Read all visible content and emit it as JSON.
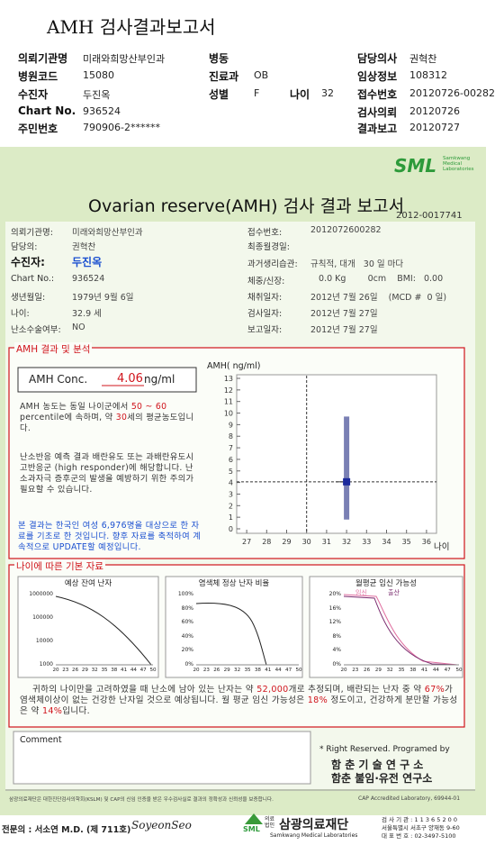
{
  "header": {
    "title": "AMH 검사결과보고서",
    "fields": [
      {
        "label": "의뢰기관명",
        "value": "미래와희망산부인과"
      },
      {
        "label": "병동"
      },
      {
        "label": "담당의사",
        "value": "권혁찬"
      },
      {
        "label": "병원코드",
        "value": "15080"
      },
      {
        "label": "진료과",
        "value": "OB"
      },
      {
        "label": "임상정보",
        "value": "108312"
      },
      {
        "label": "수진자",
        "value": "두진옥"
      },
      {
        "label": "성별",
        "value": "F"
      },
      {
        "label": "나이",
        "value": "32"
      },
      {
        "label": "접수번호",
        "value": "20120726-00282"
      },
      {
        "label": "Chart No.",
        "value": "936524"
      },
      {
        "label": "검사의뢰",
        "value": "20120726"
      },
      {
        "label": "주민번호",
        "value": "790906-2******"
      },
      {
        "label": "결과보고",
        "value": "20120727"
      }
    ]
  },
  "report": {
    "logo": "SML",
    "logo_sub": [
      "Samkwang",
      "Medical",
      "Laboratories"
    ],
    "title": "Ovarian reserve(AMH) 검사 결과 보고서",
    "number": "2012-0017741",
    "info": [
      {
        "label": "의뢰기관명:",
        "value": "미래와희망산부인과"
      },
      {
        "label": "접수번호:",
        "value": "2012072600282"
      },
      {
        "label": "담당의:",
        "value": "권혁찬"
      },
      {
        "label": "최종월경일:"
      },
      {
        "label": "수진자:",
        "value": "두진옥"
      },
      {
        "label": "과거생리습관:",
        "value": "규칙적, 대개   30 일 마다"
      },
      {
        "label": "Chart No.:",
        "value": "936524"
      },
      {
        "label": "체중/신장:",
        "value": "   0.0 Kg        0cm    BMI:   0.00"
      },
      {
        "label": "생년월일:",
        "value": "1979년 9월 6일"
      },
      {
        "label": "채취일자:",
        "value": "2012년 7월 26일    (MCD #  0 일)"
      },
      {
        "label": "나이:",
        "value": "32.9 세"
      },
      {
        "label": "검사일자:",
        "value": "2012년 7월 27일"
      },
      {
        "label": "난소수술여부:",
        "value": "NO"
      },
      {
        "label": "보고일자:",
        "value": "2012년 7월 27일"
      }
    ]
  },
  "analysis": {
    "heading": "AMH 결과 및 분석",
    "conc_label": "AMH Conc.",
    "conc_value": 4.06,
    "conc_unit": "ng/ml",
    "para1": [
      "AMH 농도는 동일 나이군에서",
      "50 ~ 60",
      "percentile에 속하며, 약",
      "세의 평균농도입니다."
    ],
    "equiv_age": 30,
    "para2": "난소반응 예측 결과 배란유도 또는 과배란유도시 고반응군 (high responder)에 해당합니다. 난소과자극 증후군의 발생을 예방하기 위한 주의가 필요할 수 있습니다.",
    "para3": "본 결과는 한국인 여성 6,976명을 대상으로 한 자료를 기초로 한 것입니다. 향후 자료를 축적하여 계속적으로 UPDATE할 예정입니다.",
    "chart": {
      "type": "range-bar",
      "y_label": "AMH( ng/ml)",
      "x_label": "나이",
      "ylim": [
        0,
        13
      ],
      "yticks": [
        0,
        1,
        2,
        3,
        4,
        5,
        6,
        7,
        8,
        9,
        10,
        11,
        12,
        13
      ],
      "xlim": [
        26.5,
        36.5
      ],
      "xticks": [
        27,
        28,
        29,
        30,
        31,
        32,
        33,
        34,
        35,
        36
      ],
      "bars": [
        {
          "x": 32,
          "low": 0.8,
          "high": 9.7
        }
      ],
      "color": "#7a80b4",
      "marker_color": "#1c2a9c"
    }
  },
  "basics": {
    "heading": "나이에 따른 기본 자료",
    "charts": [
      {
        "title": "예상 잔여 난자",
        "yticks": [
          "1000000",
          "100000",
          "10000",
          "1000"
        ],
        "xticks": [
          "20",
          "23",
          "26",
          "29",
          "32",
          "35",
          "38",
          "41",
          "44",
          "47",
          "50"
        ]
      },
      {
        "title": "염색체 정상 난자 비율",
        "yticks": [
          "100%",
          "80%",
          "60%",
          "40%",
          "20%",
          "0%"
        ],
        "xticks": [
          "20",
          "23",
          "26",
          "29",
          "32",
          "35",
          "38",
          "41",
          "44",
          "47",
          "50"
        ]
      },
      {
        "title": "월평균 임신 가능성",
        "legend": [
          "임신",
          "출산"
        ],
        "yticks": [
          "20%",
          "16%",
          "12%",
          "8%",
          "4%",
          "0%"
        ],
        "xticks": [
          "20",
          "23",
          "26",
          "29",
          "32",
          "35",
          "38",
          "41",
          "44",
          "47",
          "50"
        ]
      }
    ],
    "summary": [
      "귀하의 나이만을 고려하였을 때 난소에 남아 있는 난자는 약",
      "52,000",
      "개로 추정되며, 배란되는 난자 중 약",
      "67%",
      "가 염색체이상이 없는 건강한 난자일 것으로 예상됩니다. 월 평균 임신 가능성은",
      "18%",
      "정도이고, 건강하게 분만할 가능성은 약",
      "14%",
      "입니다."
    ]
  },
  "comment": "Comment",
  "credits": [
    "* Right Reserved. Programed by",
    "함 춘 기 술 연 구 소",
    "함춘 불임·유전 연구소"
  ],
  "accreditation": "삼광의료재단은 대한진단검사의학회(KSLM) 및 CAP의 신임 인증을 받은 우수검사실로 결과의 정확성과 신뢰성을 보증합니다.",
  "cap": "CAP  Accredited  Laboratory,  69944-01",
  "footer": {
    "doctor": "전문의 : 서소연 M.D. (제 711호)",
    "signature": "SoyeonSeo",
    "logo": "SML",
    "org_prefix": "의료법인",
    "org": "삼광의료재단",
    "org_en": "Samkwang Medical Laboratories",
    "contact": [
      "검 사 기 관 : 1 1 3 6 5 2 0 0",
      "서울특별시 서초구 양재동 9-60",
      "대 표 번 호 : 02-3497-5100"
    ]
  }
}
